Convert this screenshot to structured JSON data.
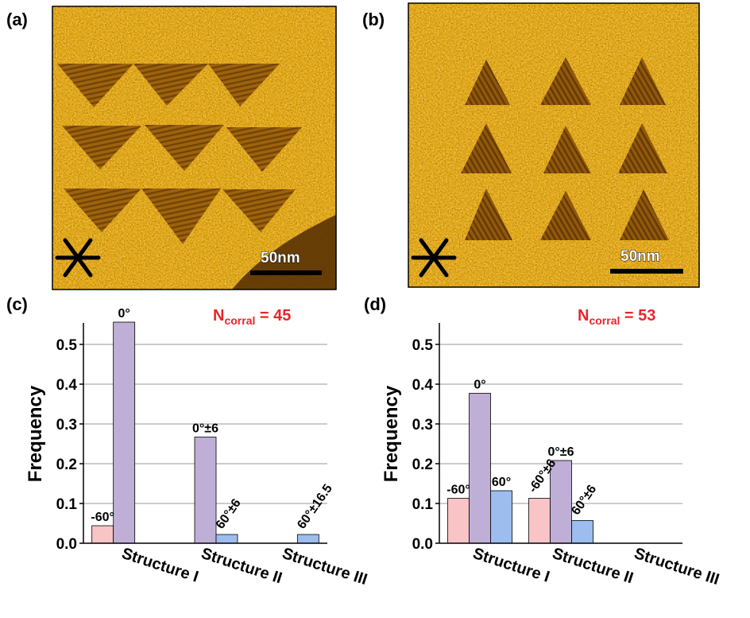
{
  "panels": {
    "a": {
      "label": "(a)",
      "scale_text": "50nm"
    },
    "b": {
      "label": "(b)",
      "scale_text": "50nm"
    },
    "c": {
      "label": "(c)"
    },
    "d": {
      "label": "(d)"
    }
  },
  "colors": {
    "minus60": "#f8c4c6",
    "zero": "#bfafd6",
    "plus60": "#9dbdee",
    "ncorral": "#e8262a",
    "afm_dark": "#7a4806",
    "afm_mid": "#c28a1f",
    "afm_light": "#f6e3ae"
  },
  "chart_data": [
    {
      "type": "bar",
      "panel": "c",
      "ylabel": "Frequency",
      "ylim": [
        0,
        0.55
      ],
      "yticks": [
        "0.0",
        "0.1",
        "0.2",
        "0.3",
        "0.4",
        "0.5"
      ],
      "categories": [
        "Structure I",
        "Structure II",
        "Structure III"
      ],
      "grid": true,
      "annotation": {
        "main": "N",
        "sub": "corral",
        "suffix": " = 45"
      },
      "series": [
        {
          "values": [
            0.044,
            0,
            0
          ]
        },
        {
          "values": [
            0.556,
            0.267,
            0
          ]
        },
        {
          "values": [
            0,
            0.022,
            0.022
          ]
        }
      ],
      "bar_labels": [
        {
          "series": 0,
          "category": 0,
          "text": "-60°",
          "rotate": false
        },
        {
          "series": 1,
          "category": 0,
          "text": "0°",
          "rotate": false
        },
        {
          "series": 1,
          "category": 1,
          "text": "0°±6",
          "rotate": false
        },
        {
          "series": 2,
          "category": 1,
          "text": "60°±6",
          "rotate": true
        },
        {
          "series": 2,
          "category": 2,
          "text": "60°±16.5",
          "rotate": true
        }
      ]
    },
    {
      "type": "bar",
      "panel": "d",
      "ylabel": "Frequency",
      "ylim": [
        0,
        0.55
      ],
      "yticks": [
        "0.0",
        "0.1",
        "0.2",
        "0.3",
        "0.4",
        "0.5"
      ],
      "categories": [
        "Structure I",
        "Structure II",
        "Structure III"
      ],
      "grid": true,
      "annotation": {
        "main": "N",
        "sub": "corral",
        "suffix": " = 53"
      },
      "series": [
        {
          "values": [
            0.113,
            0.113,
            0
          ]
        },
        {
          "values": [
            0.377,
            0.208,
            0
          ]
        },
        {
          "values": [
            0.132,
            0.057,
            0
          ]
        }
      ],
      "bar_labels": [
        {
          "series": 0,
          "category": 0,
          "text": "-60°",
          "rotate": false
        },
        {
          "series": 1,
          "category": 0,
          "text": "0°",
          "rotate": false
        },
        {
          "series": 2,
          "category": 0,
          "text": "60°",
          "rotate": false
        },
        {
          "series": 0,
          "category": 1,
          "text": "-60°±6",
          "rotate": true
        },
        {
          "series": 1,
          "category": 1,
          "text": "0°±6",
          "rotate": false
        },
        {
          "series": 2,
          "category": 1,
          "text": "60°±6",
          "rotate": true
        }
      ]
    }
  ]
}
